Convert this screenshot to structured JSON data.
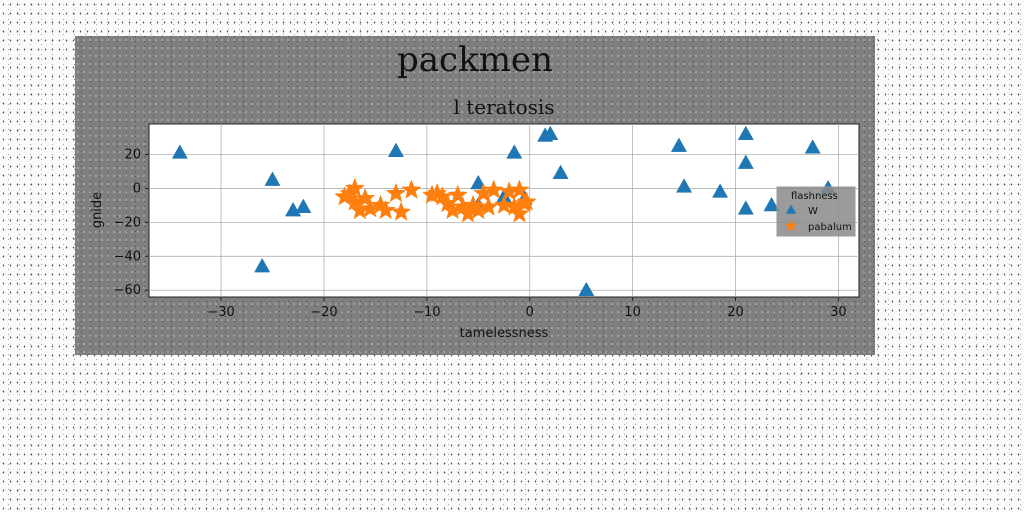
{
  "chart_data": {
    "type": "scatter",
    "suptitle": "packmen",
    "title": "l teratosis",
    "xlabel": "tamelessness",
    "ylabel": "gnide",
    "xlim": [
      -37,
      32
    ],
    "ylim": [
      -64,
      38
    ],
    "xticks": [
      -30,
      -20,
      -10,
      0,
      10,
      20,
      30
    ],
    "yticks": [
      20,
      0,
      -20,
      -40,
      -60
    ],
    "ytick_labels": [
      "20",
      "0",
      "−20",
      "−40",
      "−60"
    ],
    "xtick_labels": [
      "−30",
      "−20",
      "−10",
      "0",
      "10",
      "20",
      "30"
    ],
    "grid": true,
    "legend": {
      "title": "flashness",
      "position": "right"
    },
    "series": [
      {
        "name": "W",
        "marker": "triangle",
        "color": "#1f77b4",
        "points": [
          [
            -34,
            21
          ],
          [
            -25,
            5
          ],
          [
            -26,
            -46
          ],
          [
            -23,
            -13
          ],
          [
            -22,
            -11
          ],
          [
            -13,
            22
          ],
          [
            -5,
            3
          ],
          [
            -5,
            -10
          ],
          [
            -1.5,
            21
          ],
          [
            -2.5,
            -5
          ],
          [
            -0.5,
            -6
          ],
          [
            1.5,
            31
          ],
          [
            2,
            32
          ],
          [
            3,
            9
          ],
          [
            5.5,
            -60
          ],
          [
            14.5,
            25
          ],
          [
            15,
            1
          ],
          [
            18.5,
            -2
          ],
          [
            21,
            32
          ],
          [
            21,
            15
          ],
          [
            21,
            -12
          ],
          [
            23.5,
            -10
          ],
          [
            27.5,
            24
          ],
          [
            29,
            0
          ]
        ]
      },
      {
        "name": "pabalum",
        "marker": "star",
        "color": "#ff7f0e",
        "points": [
          [
            -18,
            -5
          ],
          [
            -17.5,
            -3
          ],
          [
            -17,
            0
          ],
          [
            -17,
            -8
          ],
          [
            -16.5,
            -13
          ],
          [
            -16,
            -6
          ],
          [
            -15.5,
            -12
          ],
          [
            -14.5,
            -10
          ],
          [
            -14,
            -13
          ],
          [
            -13,
            -3
          ],
          [
            -12.5,
            -14
          ],
          [
            -11.5,
            -1
          ],
          [
            -9.5,
            -4
          ],
          [
            -9,
            -3
          ],
          [
            -8.5,
            -5
          ],
          [
            -8,
            -9
          ],
          [
            -7.5,
            -13
          ],
          [
            -7,
            -4
          ],
          [
            -6.5,
            -11
          ],
          [
            -6,
            -15
          ],
          [
            -5.5,
            -10
          ],
          [
            -5,
            -13
          ],
          [
            -4.5,
            -3
          ],
          [
            -4,
            -11
          ],
          [
            -3.5,
            -1
          ],
          [
            -2.5,
            -10
          ],
          [
            -2,
            -2
          ],
          [
            -1.5,
            -11
          ],
          [
            -1,
            -15
          ],
          [
            -1,
            -1
          ],
          [
            -0.5,
            -9
          ],
          [
            -0.3,
            -8
          ]
        ]
      }
    ]
  }
}
